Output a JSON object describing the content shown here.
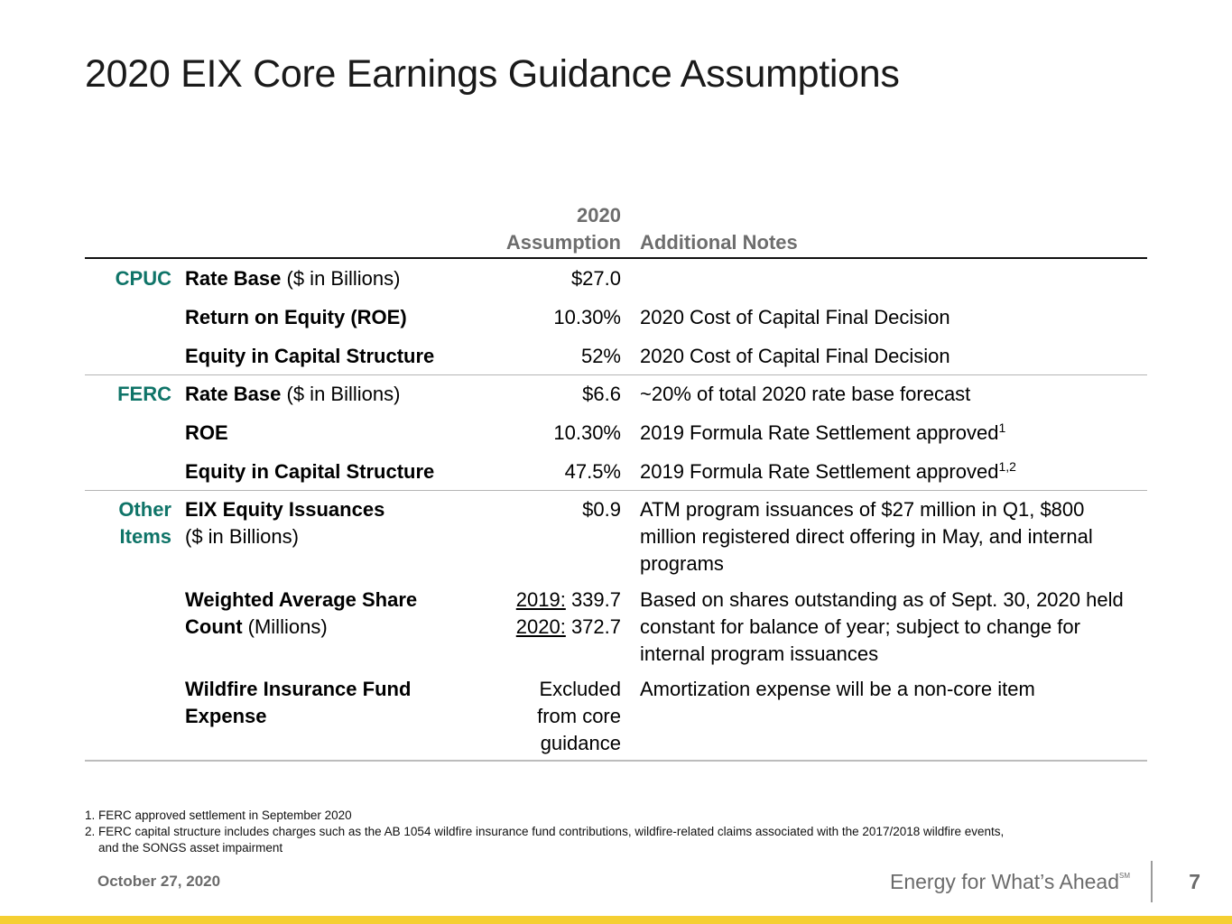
{
  "title": "2020 EIX Core Earnings Guidance Assumptions",
  "table": {
    "col_assumption_line1": "2020",
    "col_assumption_line2": "Assumption",
    "col_notes": "Additional Notes",
    "rows": [
      {
        "section": "CPUC",
        "item_bold": "Rate Base",
        "item_rest": " ($ in Billions)",
        "value": "$27.0",
        "note": ""
      },
      {
        "section": "",
        "item_bold": "Return on Equity (ROE)",
        "item_rest": "",
        "value": "10.30%",
        "note": "2020 Cost of Capital Final Decision"
      },
      {
        "section": "",
        "item_bold": "Equity in Capital Structure",
        "item_rest": "",
        "value": "52%",
        "note": "2020 Cost of Capital Final Decision"
      },
      {
        "section": "FERC",
        "item_bold": "Rate Base",
        "item_rest": " ($ in Billions)",
        "value": "$6.6",
        "note": "~20% of total 2020 rate base forecast"
      },
      {
        "section": "",
        "item_bold": "ROE",
        "item_rest": "",
        "value": "10.30%",
        "note": "2019 Formula Rate Settlement approved",
        "note_sup": "1"
      },
      {
        "section": "",
        "item_bold": "Equity in Capital Structure",
        "item_rest": "",
        "value": "47.5%",
        "note": "2019 Formula Rate Settlement approved",
        "note_sup": "1,2"
      },
      {
        "section": "Other Items",
        "item_bold": "EIX Equity Issuances",
        "item_rest": "($ in Billions)",
        "value": "$0.9",
        "note": "ATM program issuances of $27 million in Q1, $800 million registered direct offering in May, and internal programs"
      },
      {
        "section": "",
        "item_bold": "Weighted Average Share Count",
        "item_rest": " (Millions)",
        "value_2019_label": "2019:",
        "value_2019": " 339.7",
        "value_2020_label": "2020:",
        "value_2020": " 372.7",
        "note": "Based on shares outstanding as of Sept. 30, 2020 held constant for balance of year; subject to change for internal program issuances"
      },
      {
        "section": "",
        "item_bold": "Wildfire Insurance Fund Expense",
        "item_rest": "",
        "value": "Excluded from core guidance",
        "note": "Amortization expense will be a non-core item"
      }
    ]
  },
  "footnotes": [
    "1. FERC approved settlement in September 2020",
    "2. FERC capital structure includes charges such as the AB 1054 wildfire insurance fund contributions, wildfire-related claims associated with the 2017/2018 wildfire events,",
    "and the SONGS asset impairment"
  ],
  "footer": {
    "date": "October 27, 2020",
    "tagline": "Energy for What’s Ahead",
    "tagline_mark": "SM",
    "page_number": "7"
  },
  "colors": {
    "section_label": "#0f7468",
    "header_text": "#6d6d6d",
    "accent_bar": "#f5cf32"
  }
}
